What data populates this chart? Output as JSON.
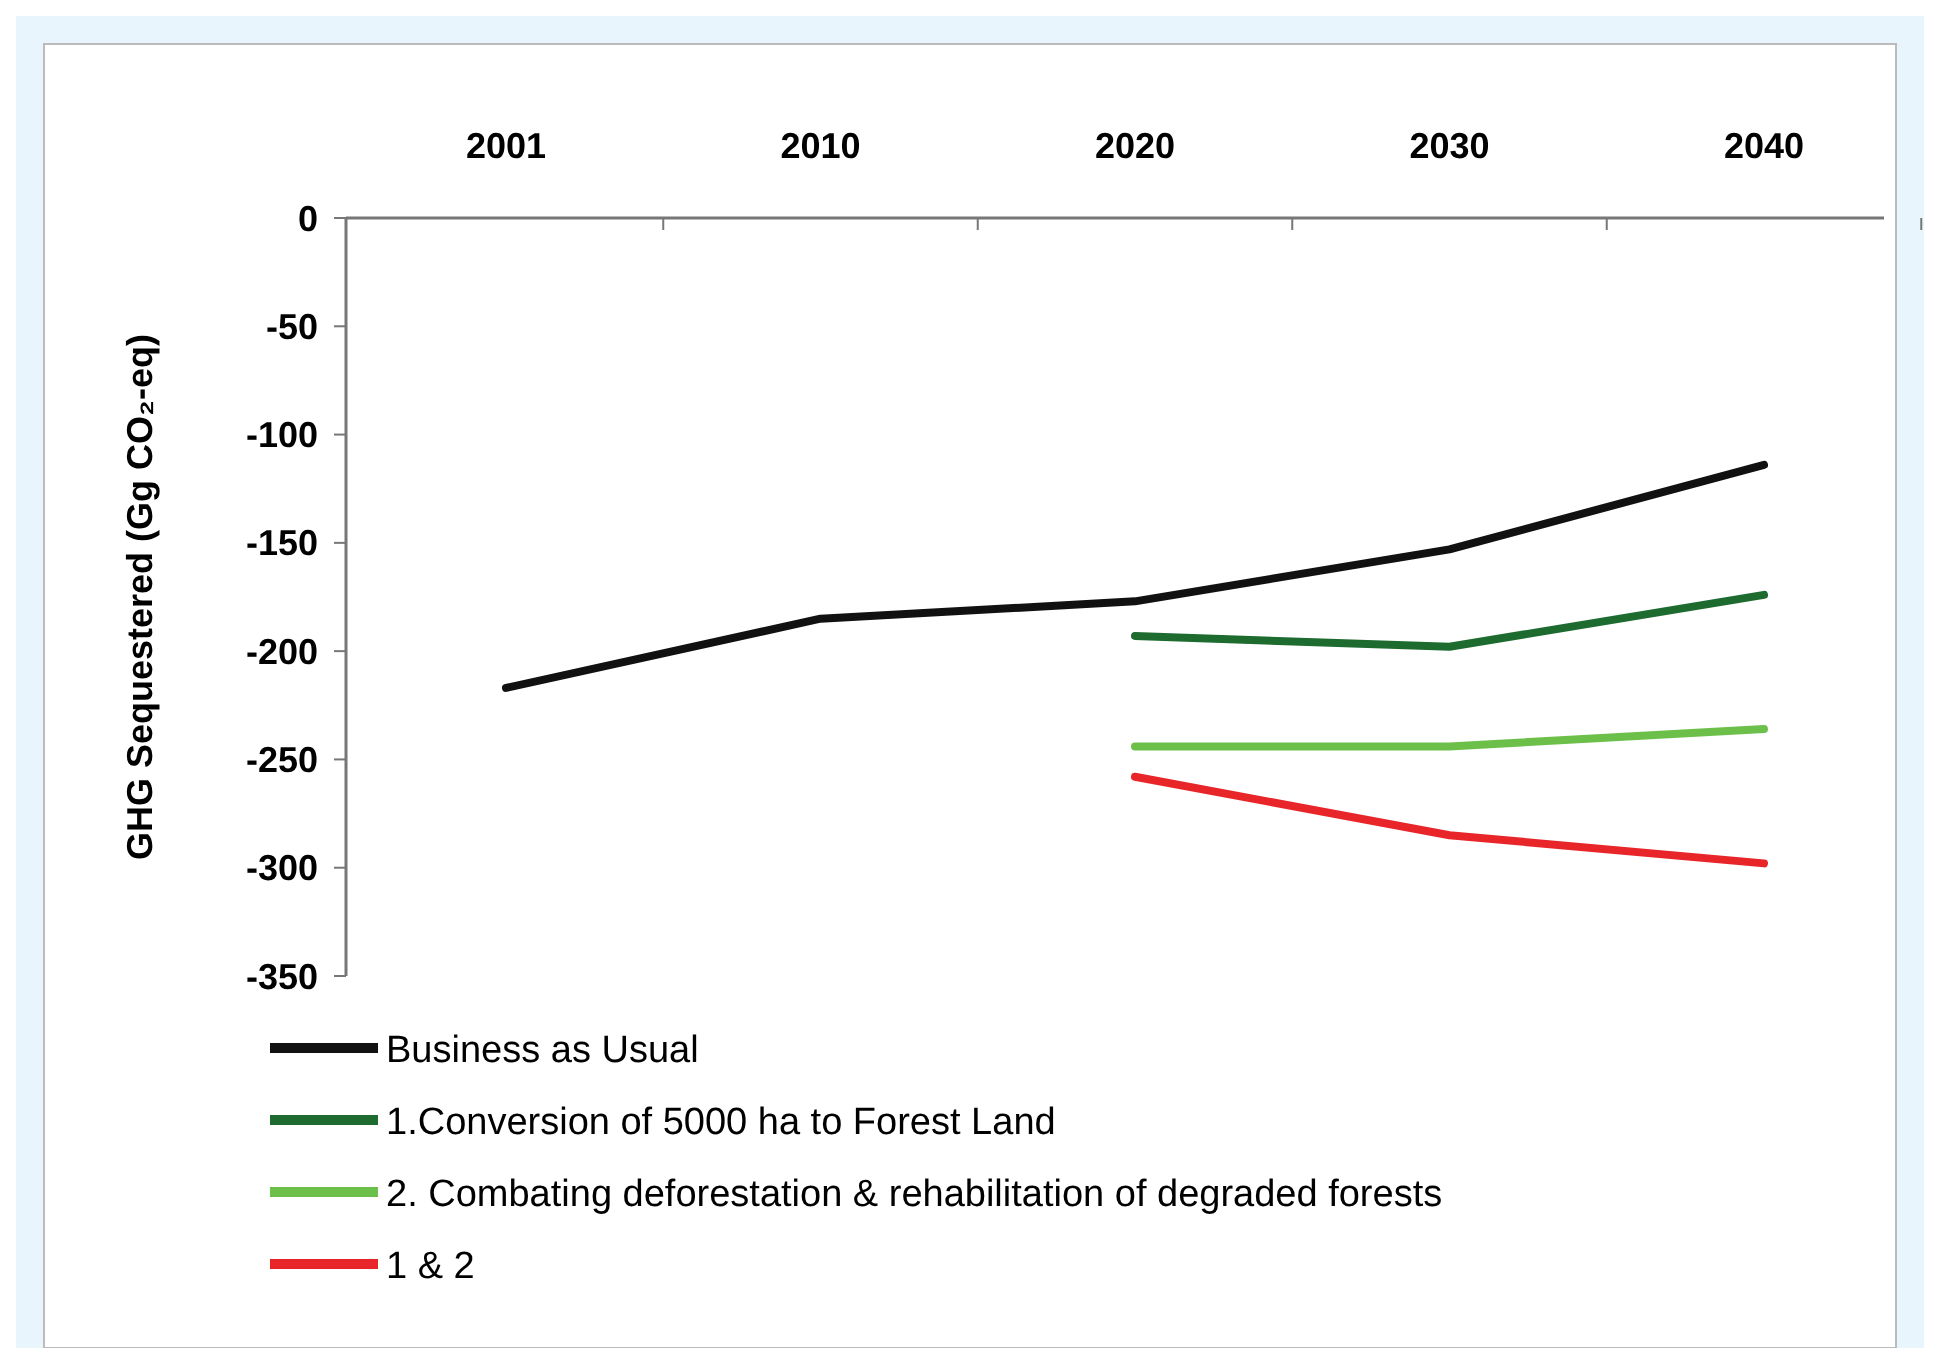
{
  "chart_data": {
    "type": "line",
    "ylabel": "GHG Sequestered (Gg CO₂-eq)",
    "categories": [
      "2001",
      "2010",
      "2020",
      "2030",
      "2040"
    ],
    "ylim": [
      -350,
      0
    ],
    "yticks": [
      0,
      -50,
      -100,
      -150,
      -200,
      -250,
      -300,
      -350
    ],
    "grid": false,
    "legend": "bottom left",
    "marker": "none",
    "line_style": "solid",
    "series": [
      {
        "name": "Business as Usual",
        "color": "#111111",
        "values": [
          -217,
          -185,
          -177,
          -153,
          -114
        ]
      },
      {
        "name": "1.Conversion of 5000 ha to Forest Land",
        "color": "#1e6b30",
        "values": [
          null,
          null,
          -193,
          -198,
          -174
        ]
      },
      {
        "name": "2. Combating deforestation & rehabilitation of degraded forests",
        "color": "#6cc04a",
        "values": [
          null,
          null,
          -244,
          -244,
          -236
        ]
      },
      {
        "name": "1 & 2",
        "color": "#e8262a",
        "values": [
          null,
          null,
          -258,
          -285,
          -298
        ]
      }
    ]
  }
}
